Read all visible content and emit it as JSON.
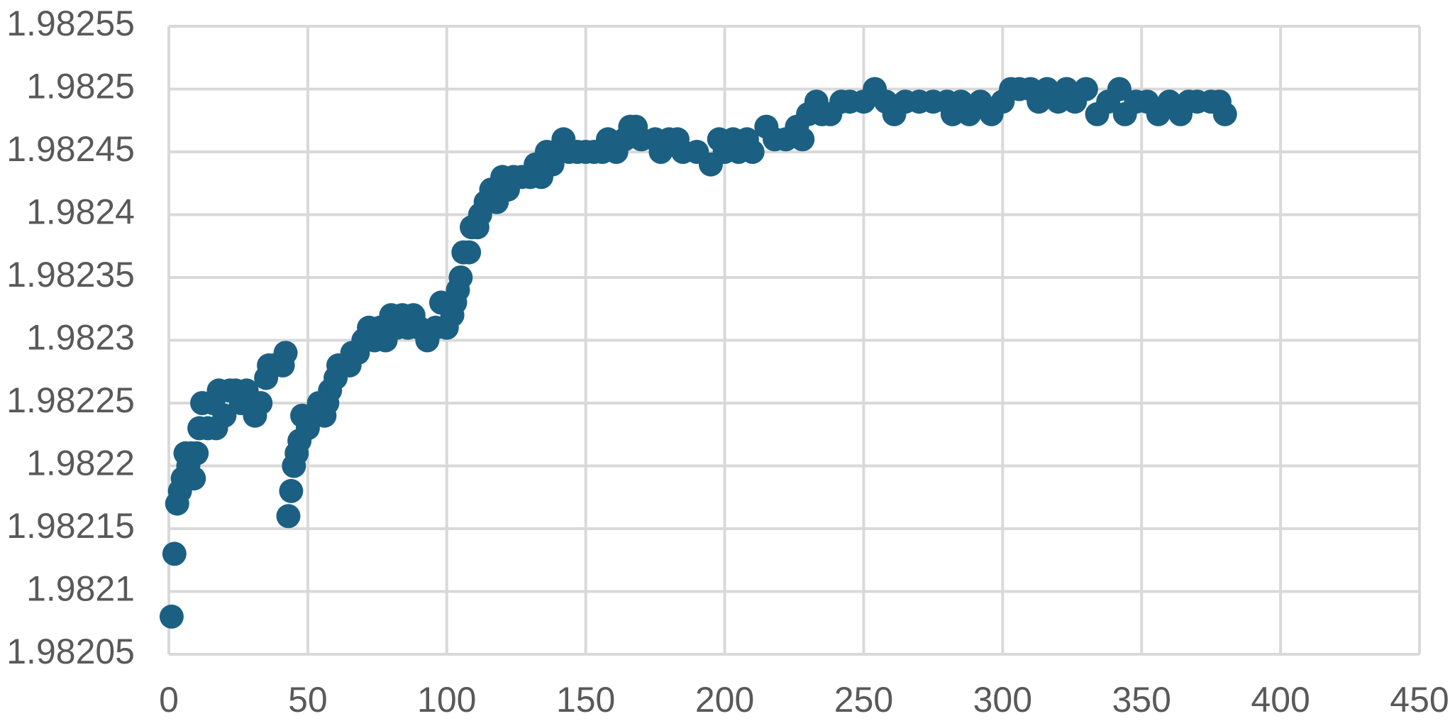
{
  "chart_data": {
    "type": "scatter",
    "color": "#1b6083",
    "grid": true,
    "xlim": [
      0,
      450
    ],
    "xticks": [
      0,
      50,
      100,
      150,
      200,
      250,
      300,
      350,
      400,
      450
    ],
    "ylim": [
      1.98205,
      1.98255
    ],
    "yticks": [
      1.98205,
      1.9821,
      1.98215,
      1.9822,
      1.98225,
      1.9823,
      1.98235,
      1.9824,
      1.98245,
      1.9825,
      1.98255
    ],
    "x": [
      1,
      2,
      3,
      4,
      5,
      6,
      7,
      8,
      9,
      10,
      11,
      12,
      14,
      16,
      17,
      18,
      20,
      22,
      24,
      26,
      28,
      30,
      31,
      33,
      35,
      36,
      38,
      41,
      42,
      43,
      44,
      45,
      46,
      47,
      48,
      50,
      52,
      54,
      56,
      57,
      58,
      60,
      61,
      63,
      65,
      66,
      68,
      70,
      72,
      74,
      76,
      78,
      80,
      82,
      84,
      86,
      88,
      90,
      93,
      96,
      98,
      100,
      102,
      103,
      104,
      105,
      106,
      108,
      109,
      111,
      112,
      114,
      116,
      118,
      120,
      122,
      124,
      127,
      130,
      132,
      134,
      136,
      138,
      140,
      142,
      144,
      147,
      150,
      153,
      156,
      158,
      161,
      164,
      166,
      168,
      170,
      175,
      177,
      180,
      183,
      185,
      190,
      195,
      198,
      200,
      203,
      205,
      208,
      210,
      215,
      218,
      222,
      226,
      228,
      230,
      233,
      235,
      238,
      242,
      245,
      250,
      254,
      258,
      261,
      265,
      270,
      275,
      280,
      282,
      285,
      288,
      292,
      296,
      300,
      303,
      306,
      310,
      313,
      316,
      320,
      323,
      326,
      330,
      334,
      338,
      342,
      344,
      348,
      352,
      356,
      360,
      364,
      367,
      370,
      375,
      378,
      380
    ],
    "y": [
      1.98208,
      1.98213,
      1.98217,
      1.98218,
      1.98219,
      1.98221,
      1.9822,
      1.98221,
      1.98219,
      1.98221,
      1.98223,
      1.98225,
      1.98223,
      1.98225,
      1.98223,
      1.98226,
      1.98224,
      1.98226,
      1.98226,
      1.98225,
      1.98226,
      1.98225,
      1.98224,
      1.98225,
      1.98227,
      1.98228,
      1.98228,
      1.98228,
      1.98229,
      1.98216,
      1.98218,
      1.9822,
      1.98221,
      1.98222,
      1.98224,
      1.98223,
      1.98224,
      1.98225,
      1.98224,
      1.98225,
      1.98226,
      1.98227,
      1.98228,
      1.98228,
      1.98228,
      1.98229,
      1.98229,
      1.9823,
      1.98231,
      1.9823,
      1.98231,
      1.9823,
      1.98232,
      1.98231,
      1.98232,
      1.98231,
      1.98232,
      1.98231,
      1.9823,
      1.98231,
      1.98233,
      1.98231,
      1.98232,
      1.98233,
      1.98234,
      1.98235,
      1.98237,
      1.98237,
      1.98239,
      1.98239,
      1.9824,
      1.98241,
      1.98242,
      1.98241,
      1.98243,
      1.98242,
      1.98243,
      1.98243,
      1.98243,
      1.98244,
      1.98243,
      1.98245,
      1.98244,
      1.98245,
      1.98246,
      1.98245,
      1.98245,
      1.98245,
      1.98245,
      1.98245,
      1.98246,
      1.98245,
      1.98246,
      1.98247,
      1.98247,
      1.98246,
      1.98246,
      1.98245,
      1.98246,
      1.98246,
      1.98245,
      1.98245,
      1.98244,
      1.98246,
      1.98245,
      1.98246,
      1.98245,
      1.98246,
      1.98245,
      1.98247,
      1.98246,
      1.98246,
      1.98247,
      1.98246,
      1.98248,
      1.98249,
      1.98248,
      1.98248,
      1.98249,
      1.98249,
      1.98249,
      1.9825,
      1.98249,
      1.98248,
      1.98249,
      1.98249,
      1.98249,
      1.98249,
      1.98248,
      1.98249,
      1.98248,
      1.98249,
      1.98248,
      1.98249,
      1.9825,
      1.9825,
      1.9825,
      1.98249,
      1.9825,
      1.98249,
      1.9825,
      1.98249,
      1.9825,
      1.98248,
      1.98249,
      1.9825,
      1.98248,
      1.98249,
      1.98249,
      1.98248,
      1.98249,
      1.98248,
      1.98249,
      1.98249,
      1.98249,
      1.98249,
      1.98248
    ]
  }
}
